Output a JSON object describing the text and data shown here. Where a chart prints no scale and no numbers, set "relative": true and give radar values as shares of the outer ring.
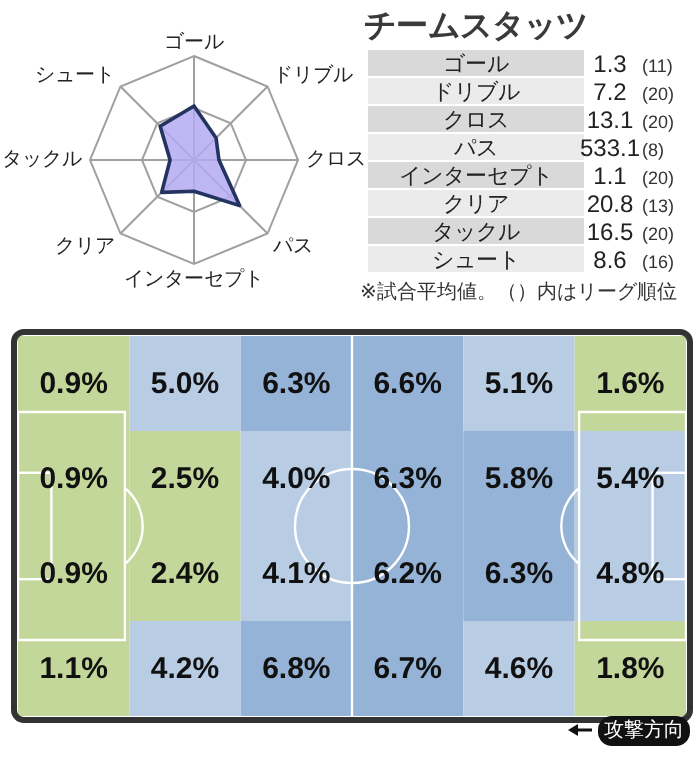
{
  "chart_data": [
    {
      "type": "radar",
      "categories": [
        "ゴール",
        "ドリブル",
        "クロス",
        "パス",
        "インターセプト",
        "クリア",
        "タックル",
        "シュート"
      ],
      "relative": true,
      "grid": true,
      "series": [
        {
          "color": "#b4aaf2",
          "values": [
            0.52,
            0.3,
            0.24,
            0.62,
            0.3,
            0.44,
            0.23,
            0.46
          ]
        }
      ]
    },
    {
      "type": "other",
      "title": "チームスタッツ",
      "categories": [
        "ゴール",
        "ドリブル",
        "クロス",
        "パス",
        "インターセプト",
        "クリア",
        "タックル",
        "シュート"
      ],
      "data_labels": true,
      "series": [
        {
          "values": [
            1.3,
            7.2,
            13.1,
            533.1,
            1.1,
            20.8,
            16.5,
            8.6
          ]
        },
        {
          "values": [
            11,
            20,
            20,
            8,
            20,
            13,
            20,
            16
          ],
          "value_labels": [
            "(11)",
            "(20)",
            "(20)",
            "(8)",
            "(20)",
            "(13)",
            "(20)",
            "(16)"
          ]
        }
      ],
      "annotations": [
        "※試合平均値。（）内はリーグ順位"
      ]
    },
    {
      "type": "heatmap",
      "categories": [
        null,
        null,
        null,
        null,
        null,
        null
      ],
      "y_categories": [
        null,
        null,
        null,
        null
      ],
      "cells": [
        [
          0.9,
          5.0,
          6.3,
          6.6,
          5.1,
          1.6
        ],
        [
          0.9,
          2.5,
          4.0,
          6.3,
          5.8,
          5.4
        ],
        [
          0.9,
          2.4,
          4.1,
          6.2,
          6.3,
          4.8
        ],
        [
          1.1,
          4.2,
          6.8,
          6.7,
          4.6,
          1.8
        ]
      ],
      "cell_labels": [
        [
          "0.9%",
          "5.0%",
          "6.3%",
          "6.6%",
          "5.1%",
          "1.6%"
        ],
        [
          "0.9%",
          "2.5%",
          "4.0%",
          "6.3%",
          "5.8%",
          "5.4%"
        ],
        [
          "0.9%",
          "2.4%",
          "4.1%",
          "6.2%",
          "6.3%",
          "4.8%"
        ],
        [
          "1.1%",
          "4.2%",
          "6.8%",
          "6.7%",
          "4.6%",
          "1.8%"
        ]
      ],
      "colors": [
        "#c4d79b",
        "#b8cce4",
        "#95b3d7"
      ],
      "annotations": [
        "攻撃方向"
      ]
    }
  ]
}
